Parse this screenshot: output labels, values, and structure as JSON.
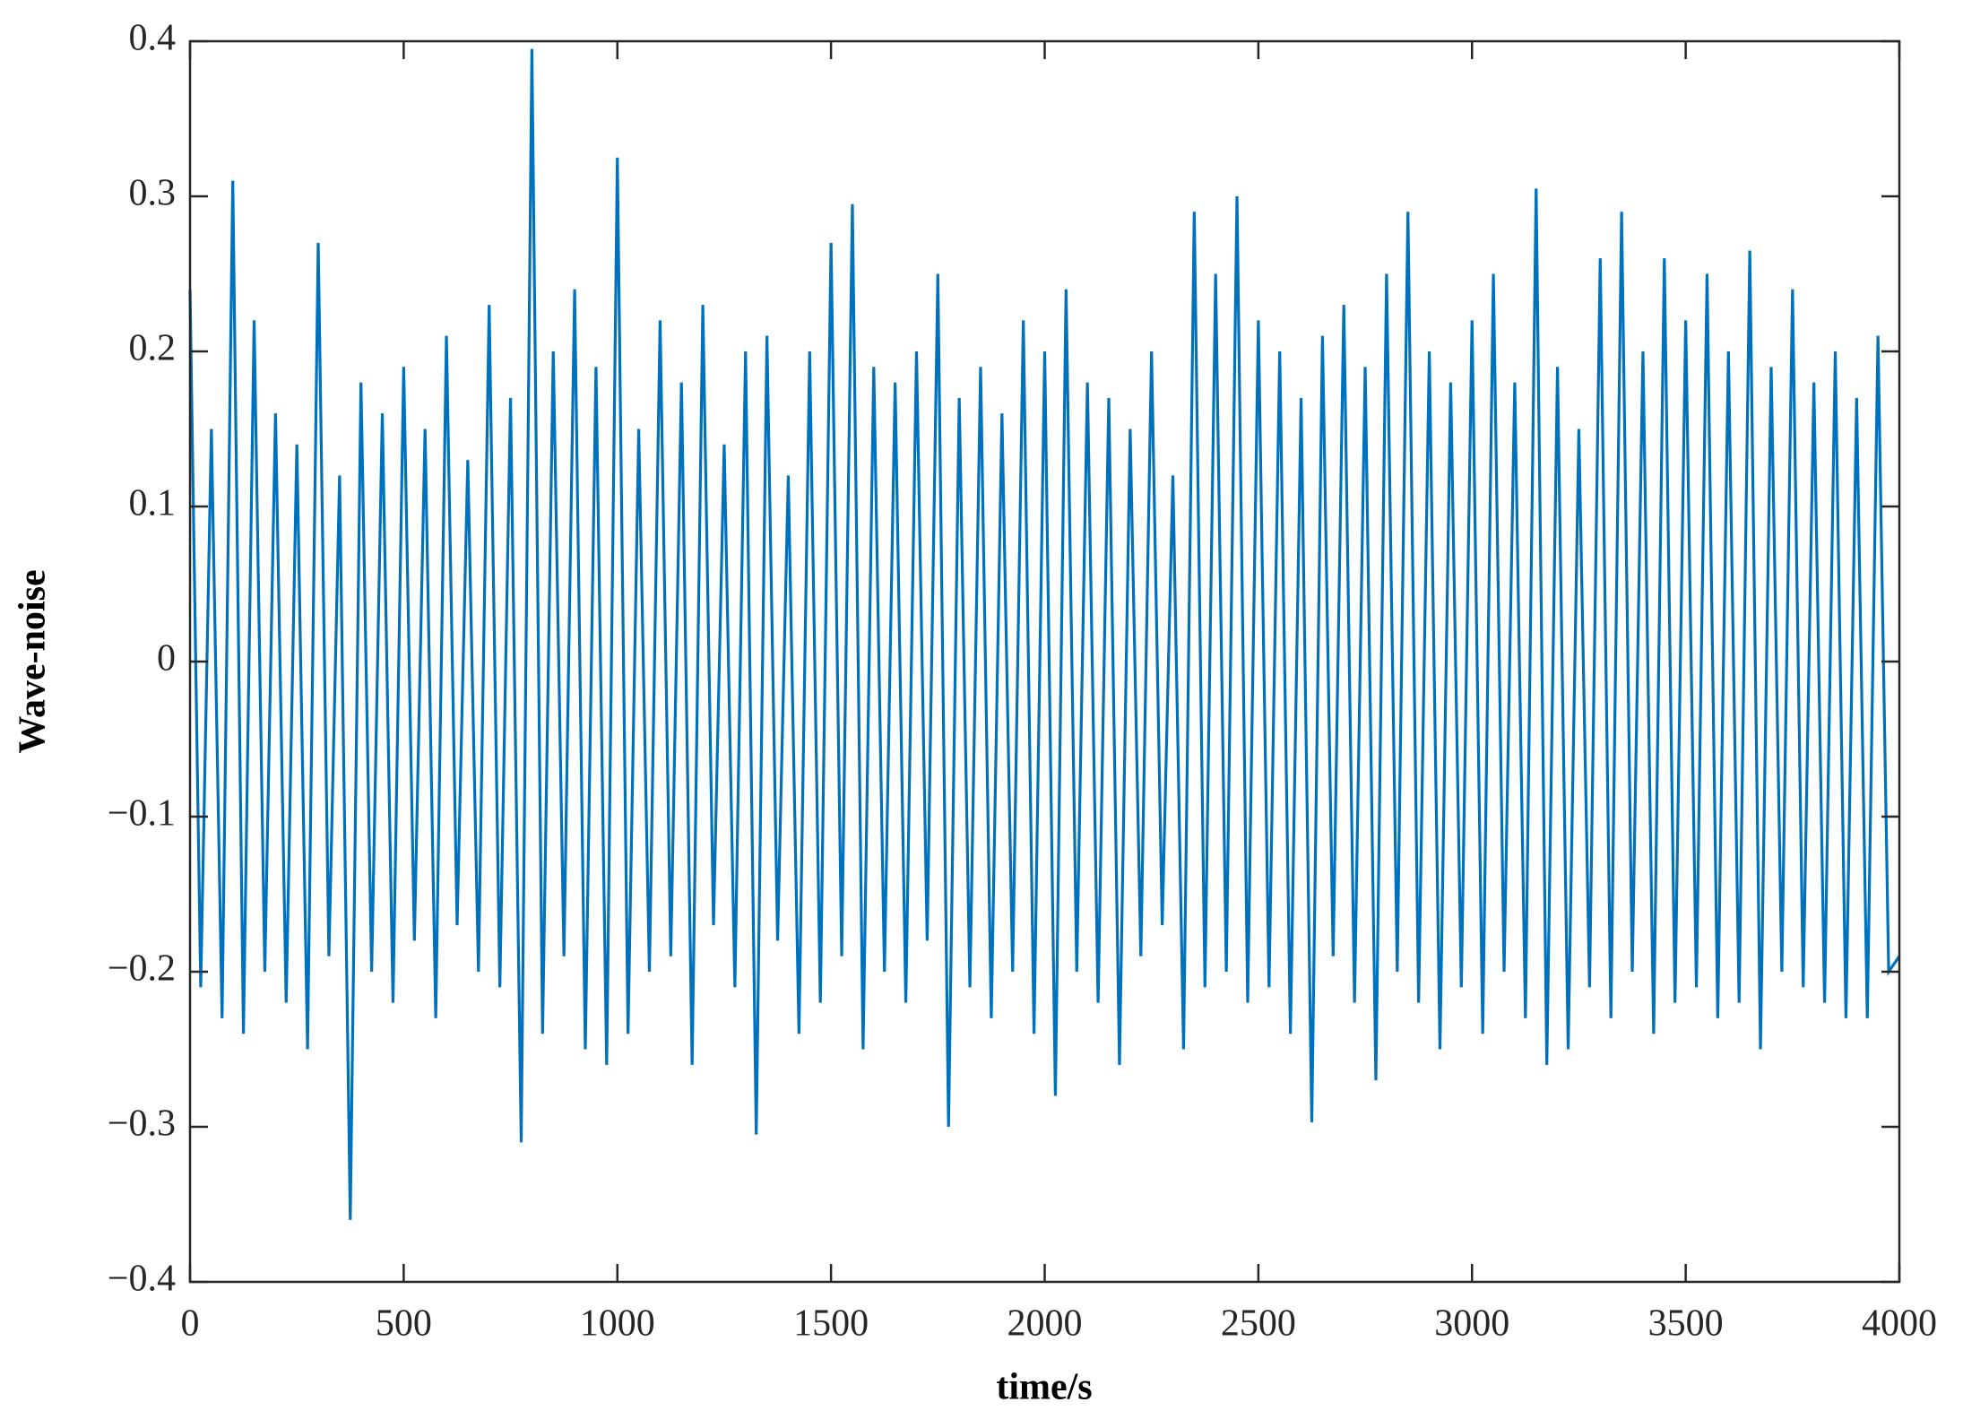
{
  "chart_data": {
    "type": "line",
    "xlabel": "time/s",
    "ylabel": "Wave-noise",
    "xlim": [
      0,
      4000
    ],
    "ylim": [
      -0.4,
      0.4
    ],
    "xticks": [
      0,
      500,
      1000,
      1500,
      2000,
      2500,
      3000,
      3500,
      4000
    ],
    "yticks": [
      {
        "value": -0.4,
        "label": "−0.4"
      },
      {
        "value": -0.3,
        "label": "−0.3"
      },
      {
        "value": -0.2,
        "label": "−0.2"
      },
      {
        "value": -0.1,
        "label": "−0.1"
      },
      0,
      0.1,
      0.2,
      0.3,
      0.4
    ],
    "box": true,
    "x": [
      0,
      25,
      50,
      75,
      100,
      125,
      150,
      175,
      200,
      225,
      250,
      275,
      300,
      325,
      350,
      375,
      400,
      425,
      450,
      475,
      500,
      525,
      550,
      575,
      600,
      625,
      650,
      675,
      700,
      725,
      750,
      775,
      800,
      825,
      850,
      875,
      900,
      925,
      950,
      975,
      1000,
      1025,
      1050,
      1075,
      1100,
      1125,
      1150,
      1175,
      1200,
      1225,
      1250,
      1275,
      1300,
      1325,
      1350,
      1375,
      1400,
      1425,
      1450,
      1475,
      1500,
      1525,
      1550,
      1575,
      1600,
      1625,
      1650,
      1675,
      1700,
      1725,
      1750,
      1775,
      1800,
      1825,
      1850,
      1875,
      1900,
      1925,
      1950,
      1975,
      2000,
      2025,
      2050,
      2075,
      2100,
      2125,
      2150,
      2175,
      2200,
      2225,
      2250,
      2275,
      2300,
      2325,
      2350,
      2375,
      2400,
      2425,
      2450,
      2475,
      2500,
      2525,
      2550,
      2575,
      2600,
      2625,
      2650,
      2675,
      2700,
      2725,
      2750,
      2775,
      2800,
      2825,
      2850,
      2875,
      2900,
      2925,
      2950,
      2975,
      3000,
      3025,
      3050,
      3075,
      3100,
      3125,
      3150,
      3175,
      3200,
      3225,
      3250,
      3275,
      3300,
      3325,
      3350,
      3375,
      3400,
      3425,
      3450,
      3475,
      3500,
      3525,
      3550,
      3575,
      3600,
      3625,
      3650,
      3675,
      3700,
      3725,
      3750,
      3775,
      3800,
      3825,
      3850,
      3875,
      3900,
      3925,
      3950,
      3975,
      4000
    ],
    "series": [
      {
        "color": "#0072bd",
        "values": [
          0.24,
          -0.21,
          0.15,
          -0.23,
          0.31,
          -0.24,
          0.22,
          -0.2,
          0.16,
          -0.22,
          0.14,
          -0.25,
          0.27,
          -0.19,
          0.12,
          -0.36,
          0.18,
          -0.2,
          0.16,
          -0.22,
          0.19,
          -0.18,
          0.15,
          -0.23,
          0.21,
          -0.17,
          0.13,
          -0.2,
          0.23,
          -0.21,
          0.17,
          -0.31,
          0.395,
          -0.24,
          0.2,
          -0.19,
          0.24,
          -0.25,
          0.19,
          -0.26,
          0.325,
          -0.24,
          0.15,
          -0.2,
          0.22,
          -0.19,
          0.18,
          -0.26,
          0.23,
          -0.17,
          0.14,
          -0.21,
          0.2,
          -0.305,
          0.21,
          -0.18,
          0.12,
          -0.24,
          0.2,
          -0.22,
          0.27,
          -0.19,
          0.295,
          -0.25,
          0.19,
          -0.2,
          0.18,
          -0.22,
          0.2,
          -0.18,
          0.25,
          -0.3,
          0.17,
          -0.21,
          0.19,
          -0.23,
          0.16,
          -0.2,
          0.22,
          -0.24,
          0.2,
          -0.28,
          0.24,
          -0.2,
          0.18,
          -0.22,
          0.17,
          -0.26,
          0.15,
          -0.19,
          0.2,
          -0.17,
          0.12,
          -0.25,
          0.29,
          -0.21,
          0.25,
          -0.2,
          0.3,
          -0.22,
          0.22,
          -0.21,
          0.2,
          -0.24,
          0.17,
          -0.297,
          0.21,
          -0.19,
          0.23,
          -0.22,
          0.19,
          -0.27,
          0.25,
          -0.2,
          0.29,
          -0.22,
          0.2,
          -0.25,
          0.18,
          -0.21,
          0.22,
          -0.24,
          0.25,
          -0.2,
          0.18,
          -0.23,
          0.305,
          -0.26,
          0.19,
          -0.25,
          0.15,
          -0.21,
          0.26,
          -0.23,
          0.29,
          -0.2,
          0.2,
          -0.24,
          0.26,
          -0.22,
          0.22,
          -0.21,
          0.25,
          -0.23,
          0.2,
          -0.22,
          0.265,
          -0.25,
          0.19,
          -0.2,
          0.24,
          -0.21,
          0.18,
          -0.22,
          0.2,
          -0.23,
          0.17,
          -0.23,
          0.21,
          -0.2,
          -0.19
        ]
      }
    ]
  }
}
